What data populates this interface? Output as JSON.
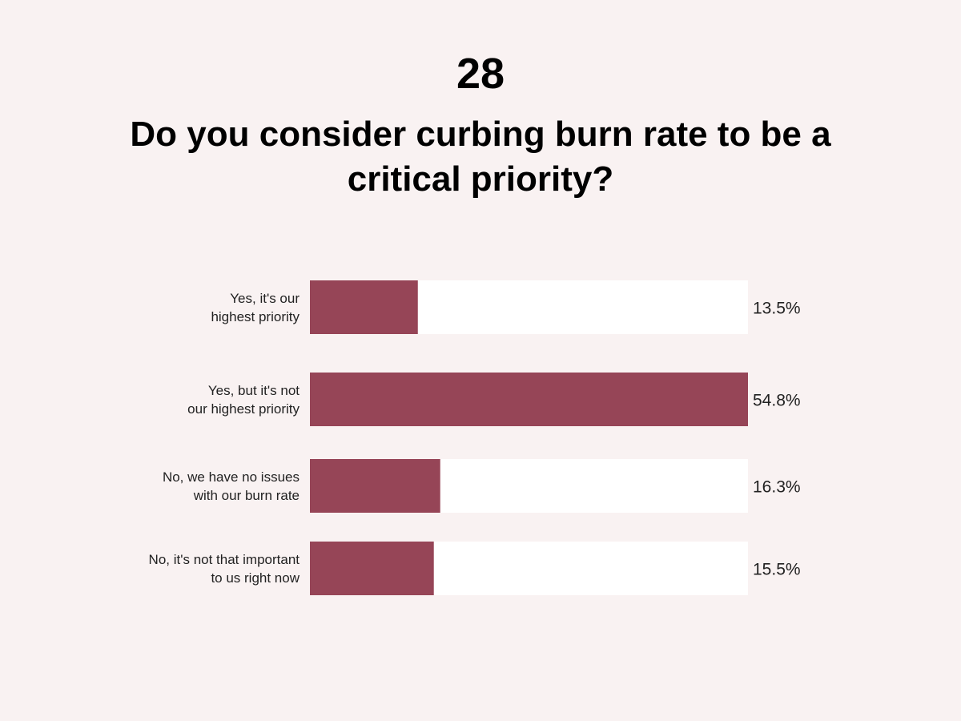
{
  "header": {
    "number": "28",
    "title": "Do you consider curbing burn rate to be a critical priority?"
  },
  "chart_data": {
    "type": "bar",
    "orientation": "horizontal",
    "categories": [
      [
        "Yes, it's our",
        "highest priority"
      ],
      [
        "Yes, but it's not",
        "our highest priority"
      ],
      [
        "No, we have no issues",
        "with our burn rate"
      ],
      [
        "No, it's not that important",
        "to us right now"
      ]
    ],
    "values": [
      13.5,
      54.8,
      16.3,
      15.5
    ],
    "value_labels": [
      "13.5%",
      "54.8%",
      "16.3%",
      "15.5%"
    ],
    "xlim": [
      0,
      54.8
    ],
    "grid": false,
    "legend": "none",
    "colors": {
      "bar": "#964557",
      "track": "#ffffff",
      "background": "#f9f2f2"
    }
  }
}
